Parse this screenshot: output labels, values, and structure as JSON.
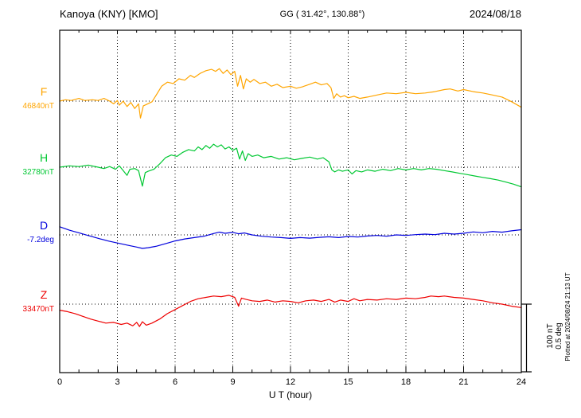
{
  "header": {
    "title": "Kanoya (KNY)  [KMO]",
    "coords": "GG ( 31.42°, 130.88°)",
    "date": "2024/08/18"
  },
  "axis": {
    "x_ticks": [
      "0",
      "3",
      "6",
      "9",
      "12",
      "15",
      "18",
      "21",
      "24"
    ],
    "xlabel": "U T (hour)"
  },
  "scale": {
    "nt_label": "100 nT",
    "deg_label": "0.5 deg",
    "plotted_note": "Plotted at 2024/08/24 21:13 UT"
  },
  "chart_data": {
    "type": "line",
    "x_range": [
      0,
      24
    ],
    "x_tick_hours": [
      0,
      3,
      6,
      9,
      12,
      15,
      18,
      21,
      24
    ],
    "x_gridlines": [
      3,
      6,
      9,
      12,
      15,
      18,
      21
    ],
    "xlabel": "U T (hour)",
    "grid": true,
    "scale_bar": {
      "nT": 100,
      "deg": 0.5
    },
    "series": [
      {
        "name": "F",
        "label": "F",
        "unit": "nT",
        "baseline": 46840,
        "value_label": "46840nT",
        "color": "#ffa500",
        "points": [
          [
            0,
            0
          ],
          [
            0.3,
            2
          ],
          [
            0.6,
            1
          ],
          [
            1,
            4
          ],
          [
            1.3,
            1
          ],
          [
            1.7,
            2
          ],
          [
            2,
            1
          ],
          [
            2.3,
            4
          ],
          [
            2.6,
            0
          ],
          [
            2.8,
            -4
          ],
          [
            3,
            1
          ],
          [
            3.1,
            -6
          ],
          [
            3.3,
            0
          ],
          [
            3.5,
            -8
          ],
          [
            3.7,
            -2
          ],
          [
            3.9,
            -11
          ],
          [
            4.1,
            -4
          ],
          [
            4.2,
            -25
          ],
          [
            4.35,
            -7
          ],
          [
            4.5,
            -5
          ],
          [
            4.8,
            -1
          ],
          [
            5,
            8
          ],
          [
            5.3,
            22
          ],
          [
            5.6,
            28
          ],
          [
            5.9,
            26
          ],
          [
            6.2,
            33
          ],
          [
            6.5,
            31
          ],
          [
            6.8,
            38
          ],
          [
            7,
            35
          ],
          [
            7.3,
            41
          ],
          [
            7.6,
            45
          ],
          [
            7.9,
            47
          ],
          [
            8.1,
            44
          ],
          [
            8.3,
            48
          ],
          [
            8.5,
            41
          ],
          [
            8.7,
            46
          ],
          [
            8.9,
            39
          ],
          [
            9.1,
            44
          ],
          [
            9.25,
            22
          ],
          [
            9.4,
            38
          ],
          [
            9.55,
            18
          ],
          [
            9.7,
            33
          ],
          [
            9.9,
            28
          ],
          [
            10.1,
            32
          ],
          [
            10.4,
            26
          ],
          [
            10.7,
            28
          ],
          [
            11,
            22
          ],
          [
            11.3,
            25
          ],
          [
            11.6,
            20
          ],
          [
            12,
            22
          ],
          [
            12.3,
            19
          ],
          [
            12.6,
            21
          ],
          [
            13,
            25
          ],
          [
            13.3,
            28
          ],
          [
            13.6,
            24
          ],
          [
            13.9,
            26
          ],
          [
            14.1,
            20
          ],
          [
            14.25,
            4
          ],
          [
            14.4,
            11
          ],
          [
            14.6,
            6
          ],
          [
            14.8,
            8
          ],
          [
            15,
            5
          ],
          [
            15.3,
            7
          ],
          [
            15.6,
            4
          ],
          [
            16,
            6
          ],
          [
            16.5,
            9
          ],
          [
            17,
            12
          ],
          [
            17.5,
            11
          ],
          [
            18,
            13
          ],
          [
            18.5,
            11
          ],
          [
            19,
            12
          ],
          [
            19.5,
            14
          ],
          [
            20,
            17
          ],
          [
            20.3,
            18
          ],
          [
            20.7,
            15
          ],
          [
            21,
            17
          ],
          [
            21.5,
            14
          ],
          [
            22,
            12
          ],
          [
            22.5,
            9
          ],
          [
            23,
            6
          ],
          [
            23.5,
            -1
          ],
          [
            24,
            -9
          ]
        ]
      },
      {
        "name": "H",
        "label": "H",
        "unit": "nT",
        "baseline": 32780,
        "value_label": "32780nT",
        "color": "#00c832",
        "points": [
          [
            0,
            0
          ],
          [
            0.5,
            2
          ],
          [
            1,
            1
          ],
          [
            1.5,
            3
          ],
          [
            2,
            0
          ],
          [
            2.3,
            -2
          ],
          [
            2.6,
            1
          ],
          [
            2.9,
            -3
          ],
          [
            3.1,
            2
          ],
          [
            3.3,
            -5
          ],
          [
            3.5,
            -12
          ],
          [
            3.65,
            -3
          ],
          [
            3.9,
            -2
          ],
          [
            4.1,
            -5
          ],
          [
            4.3,
            -28
          ],
          [
            4.45,
            -8
          ],
          [
            4.6,
            -6
          ],
          [
            4.9,
            -3
          ],
          [
            5.2,
            5
          ],
          [
            5.5,
            14
          ],
          [
            5.8,
            18
          ],
          [
            6.1,
            16
          ],
          [
            6.4,
            22
          ],
          [
            6.7,
            26
          ],
          [
            7,
            24
          ],
          [
            7.2,
            30
          ],
          [
            7.4,
            26
          ],
          [
            7.6,
            32
          ],
          [
            7.8,
            28
          ],
          [
            8,
            34
          ],
          [
            8.2,
            30
          ],
          [
            8.4,
            33
          ],
          [
            8.6,
            27
          ],
          [
            8.8,
            30
          ],
          [
            9,
            25
          ],
          [
            9.2,
            28
          ],
          [
            9.35,
            12
          ],
          [
            9.5,
            24
          ],
          [
            9.65,
            10
          ],
          [
            9.8,
            20
          ],
          [
            10,
            16
          ],
          [
            10.3,
            18
          ],
          [
            10.6,
            14
          ],
          [
            11,
            16
          ],
          [
            11.4,
            12
          ],
          [
            11.8,
            14
          ],
          [
            12.2,
            11
          ],
          [
            12.6,
            13
          ],
          [
            13,
            15
          ],
          [
            13.4,
            12
          ],
          [
            13.7,
            14
          ],
          [
            14,
            8
          ],
          [
            14.15,
            -4
          ],
          [
            14.3,
            -7
          ],
          [
            14.5,
            -4
          ],
          [
            14.7,
            -6
          ],
          [
            15,
            -4
          ],
          [
            15.2,
            -10
          ],
          [
            15.4,
            -5
          ],
          [
            15.7,
            -7
          ],
          [
            16,
            -4
          ],
          [
            16.4,
            -6
          ],
          [
            16.8,
            -3
          ],
          [
            17.2,
            -5
          ],
          [
            17.6,
            -2
          ],
          [
            18,
            -4
          ],
          [
            18.4,
            -2
          ],
          [
            18.8,
            -4
          ],
          [
            19.2,
            -2
          ],
          [
            19.6,
            -3
          ],
          [
            20,
            -5
          ],
          [
            20.4,
            -7
          ],
          [
            20.8,
            -9
          ],
          [
            21.2,
            -11
          ],
          [
            21.6,
            -13
          ],
          [
            22,
            -15
          ],
          [
            22.4,
            -17
          ],
          [
            22.8,
            -19
          ],
          [
            23.2,
            -22
          ],
          [
            23.6,
            -25
          ],
          [
            24,
            -29
          ]
        ]
      },
      {
        "name": "D",
        "label": "D",
        "unit": "deg",
        "baseline": -7.2,
        "value_label": "-7.2deg",
        "color": "#0000dd",
        "points": [
          [
            0,
            0.06
          ],
          [
            0.5,
            0.035
          ],
          [
            1,
            0.015
          ],
          [
            1.5,
            -0.005
          ],
          [
            2,
            -0.025
          ],
          [
            2.5,
            -0.045
          ],
          [
            3,
            -0.06
          ],
          [
            3.5,
            -0.075
          ],
          [
            4,
            -0.09
          ],
          [
            4.3,
            -0.1
          ],
          [
            4.6,
            -0.095
          ],
          [
            5,
            -0.085
          ],
          [
            5.5,
            -0.065
          ],
          [
            6,
            -0.045
          ],
          [
            6.5,
            -0.03
          ],
          [
            7,
            -0.02
          ],
          [
            7.5,
            -0.01
          ],
          [
            8,
            0.01
          ],
          [
            8.3,
            0.02
          ],
          [
            8.6,
            0.012
          ],
          [
            9,
            0.018
          ],
          [
            9.3,
            0.008
          ],
          [
            9.6,
            0.014
          ],
          [
            10,
            0
          ],
          [
            10.5,
            -0.01
          ],
          [
            11,
            -0.016
          ],
          [
            11.5,
            -0.02
          ],
          [
            12,
            -0.026
          ],
          [
            12.5,
            -0.02
          ],
          [
            13,
            -0.024
          ],
          [
            13.5,
            -0.018
          ],
          [
            14,
            -0.014
          ],
          [
            14.5,
            -0.02
          ],
          [
            15,
            -0.012
          ],
          [
            15.5,
            -0.016
          ],
          [
            16,
            -0.008
          ],
          [
            16.5,
            -0.004
          ],
          [
            17,
            -0.01
          ],
          [
            17.5,
            0
          ],
          [
            18,
            -0.004
          ],
          [
            18.5,
            0.002
          ],
          [
            19,
            0.006
          ],
          [
            19.5,
            0.002
          ],
          [
            20,
            0.012
          ],
          [
            20.5,
            0.006
          ],
          [
            21,
            0.012
          ],
          [
            21.5,
            0.022
          ],
          [
            22,
            0.016
          ],
          [
            22.5,
            0.026
          ],
          [
            23,
            0.02
          ],
          [
            23.5,
            0.03
          ],
          [
            24,
            0.038
          ]
        ]
      },
      {
        "name": "Z",
        "label": "Z",
        "unit": "nT",
        "baseline": 33470,
        "value_label": "33470nT",
        "color": "#ee0000",
        "points": [
          [
            0,
            -9
          ],
          [
            0.4,
            -11
          ],
          [
            0.8,
            -14
          ],
          [
            1.2,
            -18
          ],
          [
            1.6,
            -22
          ],
          [
            2,
            -25
          ],
          [
            2.4,
            -28
          ],
          [
            2.8,
            -27
          ],
          [
            3.2,
            -30
          ],
          [
            3.5,
            -28
          ],
          [
            3.8,
            -32
          ],
          [
            4,
            -27
          ],
          [
            4.15,
            -33
          ],
          [
            4.3,
            -26
          ],
          [
            4.5,
            -31
          ],
          [
            4.8,
            -28
          ],
          [
            5.2,
            -22
          ],
          [
            5.6,
            -14
          ],
          [
            6,
            -8
          ],
          [
            6.4,
            -2
          ],
          [
            6.8,
            4
          ],
          [
            7.2,
            8
          ],
          [
            7.6,
            10
          ],
          [
            8,
            12
          ],
          [
            8.4,
            11
          ],
          [
            8.8,
            13
          ],
          [
            9.1,
            10
          ],
          [
            9.3,
            -3
          ],
          [
            9.45,
            9
          ],
          [
            9.7,
            7
          ],
          [
            10,
            5
          ],
          [
            10.4,
            4
          ],
          [
            10.8,
            6
          ],
          [
            11.2,
            3
          ],
          [
            11.6,
            5
          ],
          [
            12,
            4
          ],
          [
            12.4,
            2
          ],
          [
            12.8,
            5
          ],
          [
            13.2,
            6
          ],
          [
            13.6,
            4
          ],
          [
            14,
            7
          ],
          [
            14.3,
            3
          ],
          [
            14.6,
            6
          ],
          [
            15,
            4
          ],
          [
            15.3,
            8
          ],
          [
            15.6,
            5
          ],
          [
            16,
            7
          ],
          [
            16.5,
            6
          ],
          [
            17,
            8
          ],
          [
            17.5,
            7
          ],
          [
            18,
            9
          ],
          [
            18.5,
            8
          ],
          [
            19,
            10
          ],
          [
            19.3,
            12
          ],
          [
            19.7,
            11
          ],
          [
            20,
            12
          ],
          [
            20.5,
            10
          ],
          [
            21,
            9
          ],
          [
            21.5,
            7
          ],
          [
            22,
            5
          ],
          [
            22.5,
            2
          ],
          [
            23,
            0
          ],
          [
            23.5,
            -3
          ],
          [
            24,
            -5
          ]
        ]
      }
    ]
  }
}
